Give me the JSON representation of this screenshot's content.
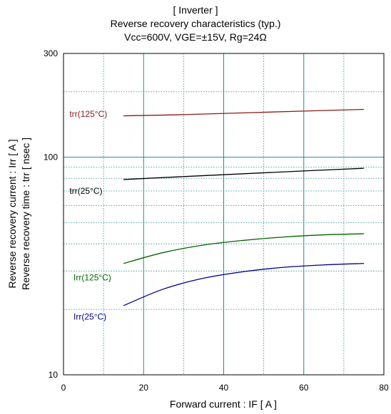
{
  "chart_data": {
    "type": "line",
    "title": "[ Inverter ]",
    "subtitle": "Reverse recovery characteristics  (typ.)",
    "conditions": "Vcc=600V, VGE=±15V, Rg=24Ω",
    "xlabel": "Forward current  :  IF  [ A ]",
    "ylabel_line1": "Reverse recovery current  :  Irr  [ A ]",
    "ylabel_line2": "Reverse recovery time  :  trr  [ nsec ]",
    "xlim": [
      0,
      80
    ],
    "ylim": [
      10,
      300
    ],
    "y_scale": "log",
    "grid": true,
    "x_ticks": [
      0,
      20,
      40,
      60,
      80
    ],
    "x_tick_labels": [
      "0",
      "20",
      "40",
      "60",
      "80"
    ],
    "y_tick_labels": [
      {
        "value": 10,
        "label": "10"
      },
      {
        "value": 100,
        "label": "100"
      },
      {
        "value": 300,
        "label": "300"
      }
    ],
    "series": [
      {
        "name": "trr(125°C)",
        "color": "#8b1a1a",
        "label_at": [
          1.5,
          158
        ],
        "x": [
          15,
          30,
          45,
          60,
          75
        ],
        "y": [
          155,
          157,
          160,
          163,
          166
        ]
      },
      {
        "name": "trr(25°C)",
        "color": "#000000",
        "label_at": [
          1.5,
          70
        ],
        "x": [
          15,
          30,
          45,
          60,
          75
        ],
        "y": [
          79,
          81.5,
          84,
          86.5,
          89
        ]
      },
      {
        "name": "Irr(125°C)",
        "color": "#006400",
        "label_at": [
          2.5,
          28
        ],
        "x": [
          15,
          25,
          35,
          45,
          55,
          65,
          75
        ],
        "y": [
          32.5,
          36.5,
          39.5,
          41.5,
          43,
          44,
          44.5
        ]
      },
      {
        "name": "Irr(25°C)",
        "color": "#00008b",
        "label_at": [
          2.5,
          18.5
        ],
        "x": [
          15,
          25,
          35,
          45,
          55,
          65,
          75
        ],
        "y": [
          20.8,
          24.8,
          27.8,
          29.8,
          31.2,
          32,
          32.5
        ]
      }
    ]
  },
  "colors": {
    "frame": "#000000",
    "grid": "#2a8a8a",
    "grid_major": "#2a8a8a"
  }
}
